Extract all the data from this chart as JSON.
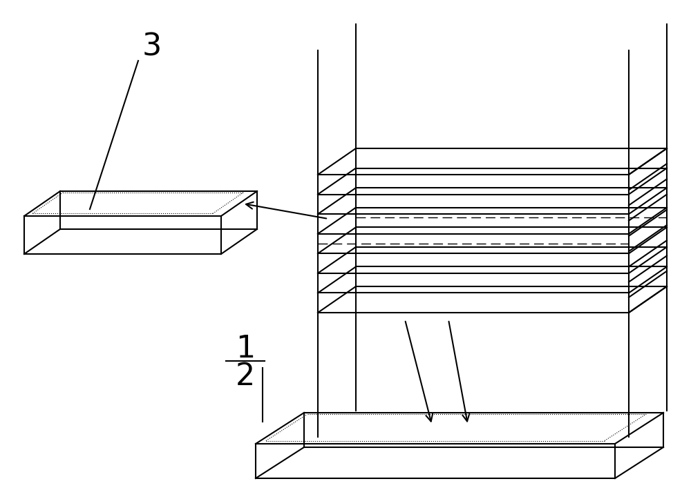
{
  "bg_color": "#ffffff",
  "line_color": "#000000",
  "label_3": "3",
  "label_1": "1",
  "label_2": "2",
  "font_size_label": 32,
  "fig_width": 10.0,
  "fig_height": 7.23,
  "dpi": 100
}
